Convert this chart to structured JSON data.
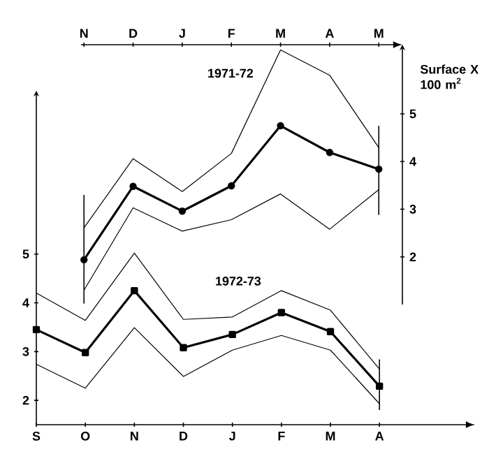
{
  "chart_data": [
    {
      "type": "line",
      "categories": [
        "N",
        "D",
        "J",
        "F",
        "M",
        "A",
        "M"
      ],
      "ylabel": "Surface X 100 m$^{2}$",
      "ylim": [
        1.0,
        6.45
      ],
      "yticks": [
        2,
        3,
        4,
        5
      ],
      "marker": "circle",
      "series": [
        {
          "name": "1971-72",
          "color": "#000000",
          "values": [
            1.94,
            3.48,
            2.96,
            3.49,
            4.75,
            4.19,
            3.84
          ],
          "errors": [
            [
              1.02,
              3.3
            ],
            null,
            null,
            null,
            null,
            null,
            [
              2.88,
              4.75
            ]
          ]
        },
        {
          "color": "#000000",
          "marker": "none",
          "values": [
            2.61,
            4.06,
            3.37,
            4.17,
            6.34,
            5.81,
            4.29
          ]
        },
        {
          "color": "#000000",
          "marker": "none",
          "values": [
            1.3,
            3.03,
            2.54,
            2.78,
            3.32,
            2.58,
            3.41
          ]
        }
      ]
    },
    {
      "type": "line",
      "categories": [
        "S",
        "O",
        "N",
        "D",
        "J",
        "F",
        "M",
        "A"
      ],
      "ylim": [
        1.5,
        8.35
      ],
      "yticks": [
        2,
        3,
        4,
        5
      ],
      "marker": "square",
      "series": [
        {
          "name": "1972-73",
          "color": "#000000",
          "values": [
            3.45,
            2.98,
            4.25,
            3.08,
            3.35,
            3.8,
            3.41,
            2.29
          ],
          "errors": [
            null,
            null,
            null,
            null,
            null,
            null,
            null,
            [
              1.8,
              2.84
            ]
          ]
        },
        {
          "color": "#000000",
          "marker": "none",
          "values": [
            4.2,
            3.64,
            5.02,
            3.66,
            3.71,
            4.25,
            3.85,
            2.64
          ]
        },
        {
          "color": "#000000",
          "marker": "none",
          "values": [
            2.74,
            2.25,
            3.49,
            2.49,
            3.03,
            3.33,
            3.03,
            1.93
          ]
        }
      ]
    }
  ]
}
